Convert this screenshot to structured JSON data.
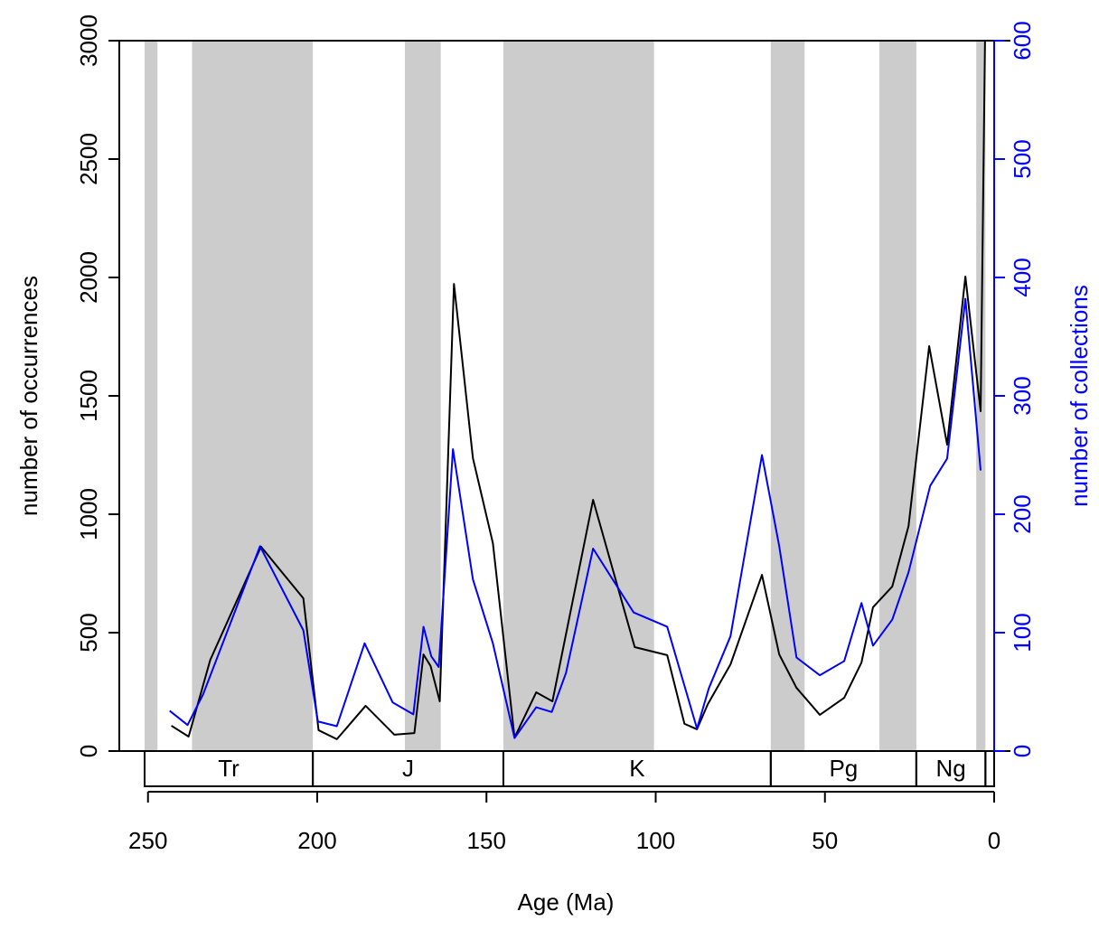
{
  "chart_data": {
    "type": "line",
    "xlabel": "Age (Ma)",
    "ylabel": "number of occurrences",
    "y2label": "number of collections",
    "xlim": [
      251,
      0
    ],
    "xticks": [
      250,
      200,
      150,
      100,
      50,
      0
    ],
    "ylim": [
      0,
      3000
    ],
    "yticks": [
      0,
      500,
      1000,
      1500,
      2000,
      2500,
      3000
    ],
    "y2lim": [
      0,
      600
    ],
    "y2ticks": [
      0,
      100,
      200,
      300,
      400,
      500,
      600
    ],
    "shade_color": "#cccccc",
    "shaded_intervals": [
      [
        251.9,
        247.2
      ],
      [
        237,
        201.3
      ],
      [
        174.1,
        163.5
      ],
      [
        145,
        100.5
      ],
      [
        66,
        56
      ],
      [
        33.9,
        23
      ],
      [
        5.3,
        2.58
      ]
    ],
    "periods": [
      {
        "label": "Tr",
        "start": 251.9,
        "end": 201.3
      },
      {
        "label": "J",
        "start": 201.3,
        "end": 145
      },
      {
        "label": "K",
        "start": 145,
        "end": 66
      },
      {
        "label": "Pg",
        "start": 66,
        "end": 23
      },
      {
        "label": "Ng",
        "start": 23,
        "end": 2.58
      },
      {
        "label": null,
        "start": 2.58,
        "end": 0
      }
    ],
    "series": [
      {
        "name": "occurrences",
        "color": "#000000",
        "axis": "y",
        "x": [
          243.1,
          238.0,
          231.6,
          216.6,
          204.1,
          199.6,
          194.2,
          185.7,
          177.2,
          171.3,
          168.6,
          166.5,
          163.8,
          159.6,
          154.0,
          148.1,
          141.7,
          135.3,
          130.5,
          118.5,
          106.2,
          96.6,
          91.5,
          87.8,
          84.6,
          77.9,
          68.6,
          63.5,
          58.4,
          51.5,
          44.3,
          39.2,
          35.8,
          30.1,
          25.3,
          19.2,
          13.9,
          8.5,
          4.0,
          2.7
        ],
        "values": [
          107,
          61,
          385,
          863,
          645,
          88,
          50,
          191,
          69,
          76,
          408,
          359,
          210,
          1973,
          1237,
          878,
          57,
          248,
          210,
          1061,
          439,
          405,
          115,
          92,
          198,
          366,
          744,
          408,
          267,
          153,
          225,
          374,
          607,
          695,
          950,
          1710,
          1294,
          2004,
          1435,
          3000
        ]
      },
      {
        "name": "collections",
        "color": "#0000ff",
        "axis": "y2",
        "x": [
          243.6,
          238.3,
          233.7,
          216.9,
          204.1,
          199.8,
          194.2,
          186.0,
          177.7,
          171.6,
          168.6,
          166.3,
          164.1,
          159.9,
          154.0,
          148.1,
          141.7,
          135.3,
          130.7,
          126.5,
          118.5,
          106.5,
          96.6,
          87.8,
          84.3,
          77.9,
          68.6,
          63.5,
          58.4,
          51.5,
          44.3,
          39.2,
          35.8,
          30.1,
          25.3,
          18.9,
          13.9,
          8.5,
          4.0
        ],
        "values": [
          34,
          22,
          48,
          173,
          102,
          25,
          21,
          91,
          41,
          31,
          105,
          80,
          71,
          255,
          145,
          91,
          11,
          37,
          33,
          66,
          171,
          117,
          105,
          19,
          53,
          97,
          250,
          173,
          79,
          64,
          76,
          125,
          89,
          111,
          151,
          224,
          247,
          382,
          237
        ]
      }
    ]
  }
}
